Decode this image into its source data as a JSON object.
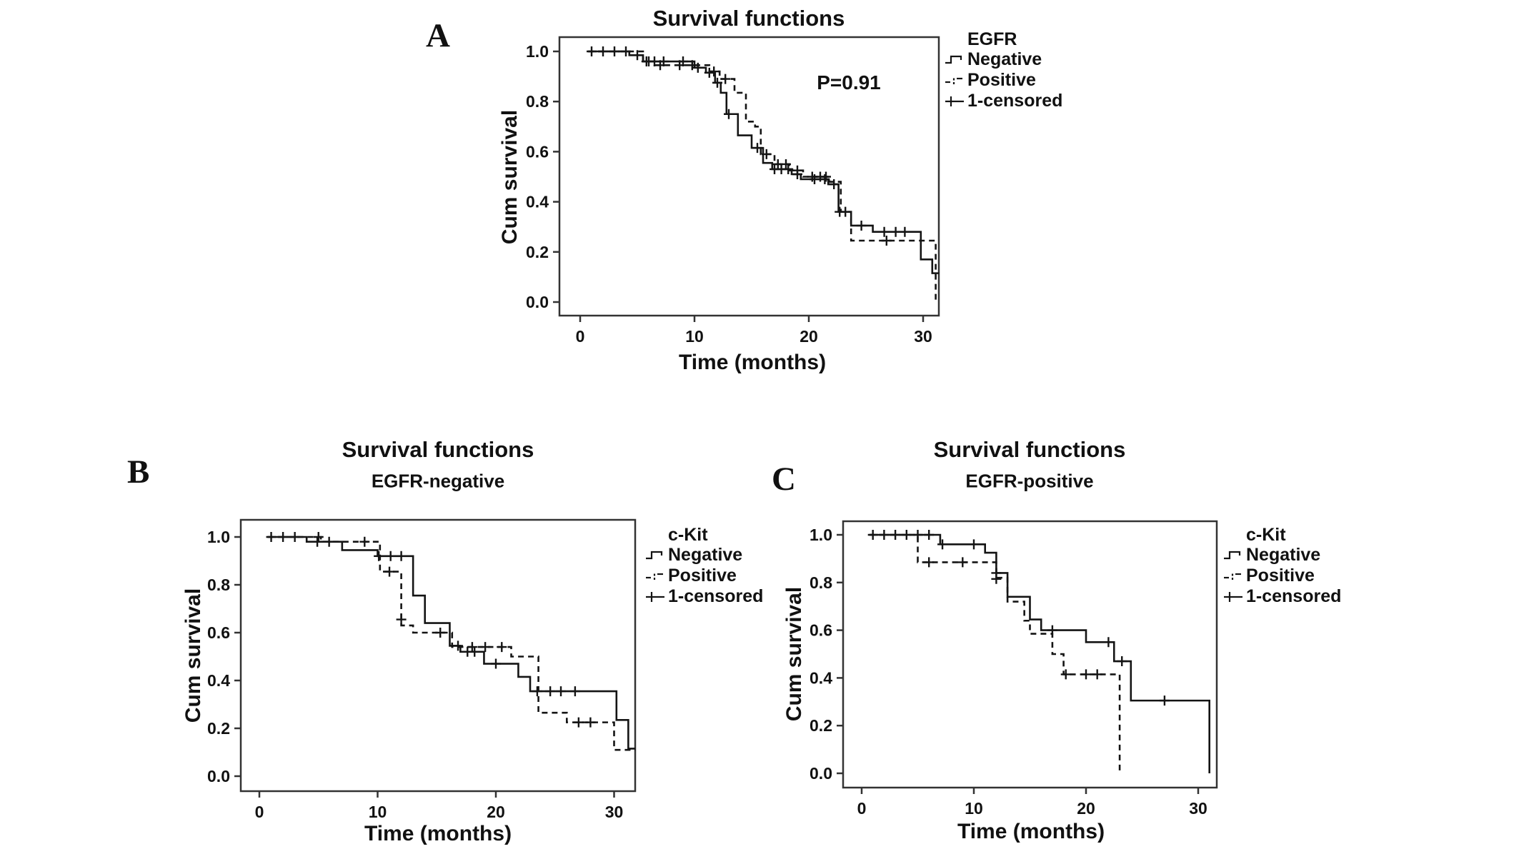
{
  "figure": {
    "background": "#ffffff",
    "text_color": "#111111",
    "curve_color": "#141414",
    "frame_color": "#333333"
  },
  "panels": [
    {
      "letter": "A",
      "title": "Survival functions",
      "subtitle": "",
      "p_value": "P=0.91",
      "xlabel": "Time (months)",
      "ylabel": "Cum survival",
      "legend": {
        "title": "EGFR",
        "items": [
          {
            "label": "Negative",
            "symbol": "solid-step-line"
          },
          {
            "label": "Positive",
            "symbol": "dashed-step-line"
          },
          {
            "label": "1-censored",
            "symbol": "plus-mark"
          }
        ]
      }
    },
    {
      "letter": "B",
      "title": "Survival functions",
      "subtitle": "EGFR-negative",
      "xlabel": "Time (months)",
      "ylabel": "Cum survival",
      "legend": {
        "title": "c-Kit",
        "items": [
          {
            "label": "Negative",
            "symbol": "solid-step-line"
          },
          {
            "label": "Positive",
            "symbol": "dashed-step-line"
          },
          {
            "label": "1-censored",
            "symbol": "plus-mark"
          }
        ]
      }
    },
    {
      "letter": "C",
      "title": "Survival functions",
      "subtitle": "EGFR-positive",
      "xlabel": "Time (months)",
      "ylabel": "Cum survival",
      "legend": {
        "title": "c-Kit",
        "items": [
          {
            "label": "Negative",
            "symbol": "solid-step-line"
          },
          {
            "label": "Positive",
            "symbol": "dashed-step-line"
          },
          {
            "label": "1-censored",
            "symbol": "plus-mark"
          }
        ]
      }
    }
  ],
  "chart_data": [
    {
      "panel": "A",
      "type": "line",
      "subtype": "kaplan-meier-step",
      "title": "Survival functions",
      "group_variable": "EGFR",
      "annotation": "P=0.91",
      "xlabel": "Time (months)",
      "ylabel": "Cum survival",
      "xlim": [
        -1.5,
        32
      ],
      "ylim": [
        0.0,
        1.0
      ],
      "xticks": [
        0,
        10,
        20,
        30
      ],
      "yticks": [
        0.0,
        0.2,
        0.4,
        0.6,
        0.8,
        1.0
      ],
      "grid": false,
      "legend_position": "right-top",
      "series": [
        {
          "name": "Negative",
          "style": "solid",
          "steps": [
            [
              0.7,
              1.0
            ],
            [
              4.3,
              0.985
            ],
            [
              5.5,
              0.96
            ],
            [
              10,
              0.935
            ],
            [
              11,
              0.915
            ],
            [
              11.8,
              0.875
            ],
            [
              12.3,
              0.835
            ],
            [
              12.8,
              0.75
            ],
            [
              13.8,
              0.665
            ],
            [
              15,
              0.615
            ],
            [
              16,
              0.555
            ],
            [
              16.8,
              0.53
            ],
            [
              18.5,
              0.51
            ],
            [
              19.3,
              0.49
            ],
            [
              21.7,
              0.47
            ],
            [
              22.6,
              0.36
            ],
            [
              23.7,
              0.305
            ],
            [
              25.6,
              0.28
            ],
            [
              29.8,
              0.17
            ],
            [
              30.8,
              0.115
            ]
          ],
          "end_x": 31.4,
          "censors": [
            [
              1,
              1.0
            ],
            [
              2,
              1.0
            ],
            [
              3,
              1.0
            ],
            [
              4,
              1.0
            ],
            [
              5,
              0.985
            ],
            [
              5.8,
              0.96
            ],
            [
              6.5,
              0.96
            ],
            [
              7.3,
              0.96
            ],
            [
              9,
              0.96
            ],
            [
              10.3,
              0.935
            ],
            [
              11.3,
              0.915
            ],
            [
              12,
              0.875
            ],
            [
              13,
              0.75
            ],
            [
              15.5,
              0.615
            ],
            [
              17,
              0.53
            ],
            [
              17.6,
              0.53
            ],
            [
              18.2,
              0.53
            ],
            [
              19,
              0.51
            ],
            [
              20.5,
              0.49
            ],
            [
              21.4,
              0.49
            ],
            [
              22.2,
              0.47
            ],
            [
              22.7,
              0.36
            ],
            [
              24.6,
              0.305
            ],
            [
              26.6,
              0.28
            ],
            [
              27.6,
              0.28
            ],
            [
              28.4,
              0.28
            ]
          ]
        },
        {
          "name": "Positive",
          "style": "dashed",
          "steps": [
            [
              0.7,
              1.0
            ],
            [
              5.5,
              0.96
            ],
            [
              6.5,
              0.945
            ],
            [
              11.3,
              0.92
            ],
            [
              12.2,
              0.89
            ],
            [
              13.5,
              0.835
            ],
            [
              14.5,
              0.72
            ],
            [
              15.3,
              0.7
            ],
            [
              15.8,
              0.59
            ],
            [
              17,
              0.55
            ],
            [
              18.3,
              0.525
            ],
            [
              19.5,
              0.5
            ],
            [
              21.8,
              0.48
            ],
            [
              22.8,
              0.36
            ],
            [
              23.7,
              0.245
            ],
            [
              31.1,
              0.0
            ]
          ],
          "censors": [
            [
              6,
              0.96
            ],
            [
              7,
              0.945
            ],
            [
              8.7,
              0.945
            ],
            [
              9.8,
              0.945
            ],
            [
              11.7,
              0.92
            ],
            [
              12.7,
              0.89
            ],
            [
              16.3,
              0.59
            ],
            [
              17.3,
              0.55
            ],
            [
              18,
              0.55
            ],
            [
              19,
              0.525
            ],
            [
              20.3,
              0.5
            ],
            [
              21,
              0.5
            ],
            [
              21.5,
              0.5
            ],
            [
              23.2,
              0.36
            ],
            [
              26.8,
              0.245
            ]
          ]
        }
      ]
    },
    {
      "panel": "B",
      "type": "line",
      "subtype": "kaplan-meier-step",
      "title": "Survival functions",
      "subtitle": "EGFR-negative",
      "group_variable": "c-Kit",
      "xlabel": "Time (months)",
      "ylabel": "Cum survival",
      "xlim": [
        -1.5,
        32
      ],
      "ylim": [
        0.0,
        1.0
      ],
      "xticks": [
        0,
        10,
        20,
        30
      ],
      "yticks": [
        0.0,
        0.2,
        0.4,
        0.6,
        0.8,
        1.0
      ],
      "grid": false,
      "legend_position": "right-top",
      "series": [
        {
          "name": "Negative",
          "style": "solid",
          "steps": [
            [
              0.7,
              1.0
            ],
            [
              4,
              0.98
            ],
            [
              7,
              0.945
            ],
            [
              10,
              0.92
            ],
            [
              13,
              0.755
            ],
            [
              14,
              0.64
            ],
            [
              16.1,
              0.545
            ],
            [
              17,
              0.52
            ],
            [
              19,
              0.47
            ],
            [
              21.9,
              0.415
            ],
            [
              22.9,
              0.355
            ],
            [
              30.2,
              0.235
            ],
            [
              31.2,
              0.115
            ]
          ],
          "end_x": 31.8,
          "censors": [
            [
              1,
              1.0
            ],
            [
              2,
              1.0
            ],
            [
              3,
              1.0
            ],
            [
              4.9,
              0.98
            ],
            [
              5.9,
              0.98
            ],
            [
              10.1,
              0.92
            ],
            [
              11.1,
              0.92
            ],
            [
              12,
              0.92
            ],
            [
              16.8,
              0.545
            ],
            [
              17.6,
              0.52
            ],
            [
              18.2,
              0.52
            ],
            [
              20,
              0.47
            ],
            [
              23.5,
              0.355
            ],
            [
              24.6,
              0.355
            ],
            [
              25.5,
              0.355
            ],
            [
              26.7,
              0.355
            ]
          ]
        },
        {
          "name": "Positive",
          "style": "dashed",
          "steps": [
            [
              0.7,
              1.0
            ],
            [
              5.2,
              0.98
            ],
            [
              10.2,
              0.855
            ],
            [
              12,
              0.63
            ],
            [
              13,
              0.6
            ],
            [
              16.3,
              0.54
            ],
            [
              21.3,
              0.5
            ],
            [
              23.6,
              0.265
            ],
            [
              26,
              0.225
            ],
            [
              30,
              0.11
            ]
          ],
          "end_x": 31.8,
          "censors": [
            [
              5,
              1.0
            ],
            [
              8.9,
              0.98
            ],
            [
              11,
              0.855
            ],
            [
              12,
              0.655
            ],
            [
              15.3,
              0.6
            ],
            [
              18,
              0.54
            ],
            [
              19.1,
              0.54
            ],
            [
              20.5,
              0.54
            ],
            [
              27,
              0.225
            ],
            [
              28,
              0.225
            ]
          ]
        }
      ]
    },
    {
      "panel": "C",
      "type": "line",
      "subtype": "kaplan-meier-step",
      "title": "Survival functions",
      "subtitle": "EGFR-positive",
      "group_variable": "c-Kit",
      "xlabel": "Time (months)",
      "ylabel": "Cum survival",
      "xlim": [
        -1.5,
        32
      ],
      "ylim": [
        0.0,
        1.0
      ],
      "xticks": [
        0,
        10,
        20,
        30
      ],
      "yticks": [
        0.0,
        0.2,
        0.4,
        0.6,
        0.8,
        1.0
      ],
      "grid": false,
      "legend_position": "right-top",
      "series": [
        {
          "name": "Negative",
          "style": "solid",
          "steps": [
            [
              0.7,
              1.0
            ],
            [
              7,
              0.96
            ],
            [
              11,
              0.925
            ],
            [
              12,
              0.84
            ],
            [
              13,
              0.74
            ],
            [
              15,
              0.645
            ],
            [
              16,
              0.6
            ],
            [
              20,
              0.55
            ],
            [
              22.5,
              0.47
            ],
            [
              24,
              0.305
            ],
            [
              31,
              0.0
            ]
          ],
          "censors": [
            [
              1,
              1.0
            ],
            [
              2,
              1.0
            ],
            [
              3,
              1.0
            ],
            [
              4,
              1.0
            ],
            [
              5,
              1.0
            ],
            [
              6,
              1.0
            ],
            [
              7.2,
              0.96
            ],
            [
              10,
              0.96
            ],
            [
              12,
              0.84
            ],
            [
              17,
              0.6
            ],
            [
              22,
              0.55
            ],
            [
              23.2,
              0.47
            ],
            [
              27,
              0.305
            ]
          ]
        },
        {
          "name": "Positive",
          "style": "dashed",
          "steps": [
            [
              0.7,
              1.0
            ],
            [
              5,
              0.885
            ],
            [
              12,
              0.82
            ],
            [
              13,
              0.72
            ],
            [
              14.5,
              0.64
            ],
            [
              15,
              0.585
            ],
            [
              17,
              0.5
            ],
            [
              18,
              0.415
            ],
            [
              23,
              0.0
            ]
          ],
          "censors": [
            [
              6,
              0.885
            ],
            [
              9,
              0.885
            ],
            [
              12,
              0.815
            ],
            [
              18.2,
              0.415
            ],
            [
              20,
              0.415
            ],
            [
              21,
              0.415
            ]
          ]
        }
      ]
    }
  ]
}
